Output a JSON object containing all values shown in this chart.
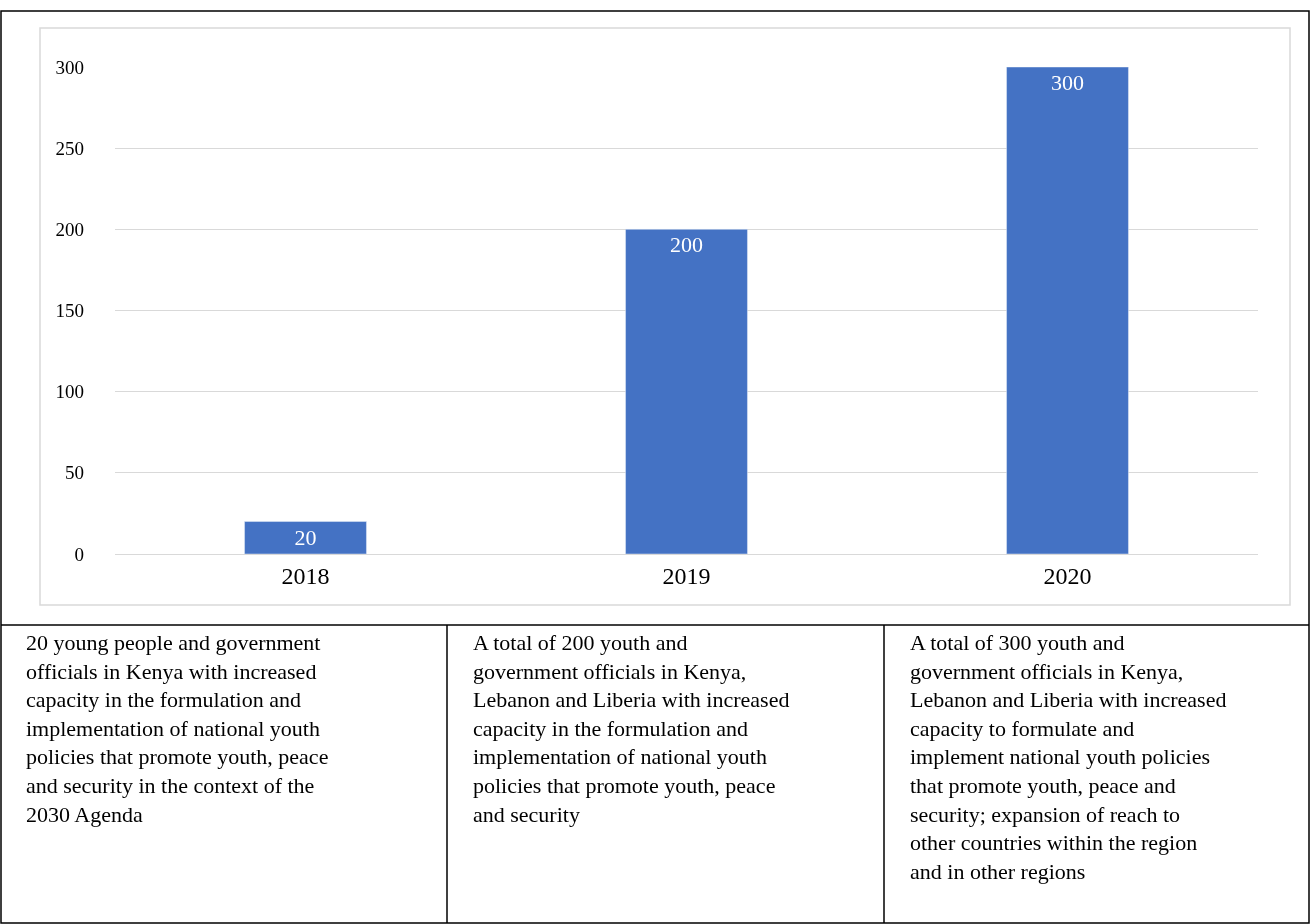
{
  "chart_data": {
    "type": "bar",
    "categories": [
      "2018",
      "2019",
      "2020"
    ],
    "values": [
      20,
      200,
      300
    ],
    "color": "#4472c4",
    "ylim": [
      0,
      300
    ],
    "yticks": [
      0,
      50,
      100,
      150,
      200,
      250,
      300
    ],
    "grid": "y",
    "data_labels": true,
    "legend": false,
    "annotations": [
      "20 young people and government officials in Kenya with increased capacity in the formulation and implementation of national youth policies that promote youth, peace and security in the context of the 2030 Agenda",
      "A total of 200 youth and government officials in Kenya, Lebanon and Liberia with increased capacity in the formulation and implementation of national youth policies that promote youth, peace and security",
      "A total of 300 youth and government officials in Kenya, Lebanon and Liberia with increased capacity to formulate and implement national youth policies that promote youth, peace and security; expansion of reach to other countries within the region and in other regions"
    ]
  }
}
